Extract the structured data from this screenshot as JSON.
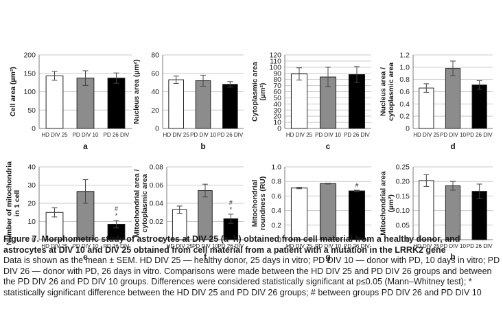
{
  "chart_data": [
    {
      "type": "bar",
      "panel_label": "a",
      "ylabel_lines": [
        "Cell area (µm²)"
      ],
      "categories": [
        "HD DIV 25",
        "PD DIV 10",
        "PD 26 DIV"
      ],
      "values": [
        143,
        137,
        137
      ],
      "errors": [
        12,
        20,
        14
      ],
      "ylim": [
        0,
        200
      ],
      "yticks": [
        0,
        50,
        100,
        150,
        200
      ],
      "colors": [
        "#ffffff",
        "#8c8c8c",
        "#000000"
      ],
      "annotations": [
        [],
        [],
        []
      ]
    },
    {
      "type": "bar",
      "panel_label": "b",
      "ylabel_lines": [
        "Nucleus area (µm²)"
      ],
      "categories": [
        "HD DIV 25",
        "PD DIV 10",
        "PD 26 DIV"
      ],
      "values": [
        53,
        52,
        48
      ],
      "errors": [
        4,
        6,
        3
      ],
      "ylim": [
        0,
        80
      ],
      "yticks": [
        0,
        20,
        40,
        60,
        80
      ],
      "colors": [
        "#ffffff",
        "#8c8c8c",
        "#000000"
      ],
      "annotations": [
        [],
        [],
        []
      ]
    },
    {
      "type": "bar",
      "panel_label": "c",
      "ylabel_lines": [
        "Cytoplasmic area",
        "(µm²)"
      ],
      "categories": [
        "HD DIV 25",
        "PD DIV 10",
        "PD 26 DIV"
      ],
      "values": [
        89,
        84,
        88
      ],
      "errors": [
        10,
        16,
        13
      ],
      "ylim": [
        0,
        120
      ],
      "yticks": [
        0,
        10,
        20,
        30,
        40,
        50,
        60,
        70,
        80,
        90,
        100,
        110,
        120
      ],
      "colors": [
        "#ffffff",
        "#8c8c8c",
        "#000000"
      ],
      "annotations": [
        [],
        [],
        []
      ]
    },
    {
      "type": "bar",
      "panel_label": "d",
      "ylabel_lines": [
        "Nucleus area /",
        "cytoplasmic area"
      ],
      "categories": [
        "HD DIV 25",
        "PD DIV 10",
        "PD 26 DIV"
      ],
      "values": [
        0.66,
        0.98,
        0.71
      ],
      "errors": [
        0.07,
        0.12,
        0.07
      ],
      "ylim": [
        0,
        1.2
      ],
      "yticks": [
        0,
        0.2,
        0.4,
        0.6,
        0.8,
        1.0,
        1.2
      ],
      "ytick_labels": [
        "0",
        "0.2",
        "0.4",
        "0.6",
        "0.8",
        "1.0",
        "1.2"
      ],
      "colors": [
        "#ffffff",
        "#8c8c8c",
        "#000000"
      ],
      "annotations": [
        [],
        [],
        []
      ]
    },
    {
      "type": "bar",
      "panel_label": "e",
      "ylabel_lines": [
        "Number of mitochondria",
        "in 1 cell"
      ],
      "categories": [
        "HD DIV 25",
        "PD DIV 10",
        "PD 26 DIV"
      ],
      "values": [
        15,
        26.5,
        8.5
      ],
      "errors": [
        2.5,
        6.5,
        2
      ],
      "ylim": [
        0,
        40
      ],
      "yticks": [
        0,
        10,
        20,
        30,
        40
      ],
      "colors": [
        "#ffffff",
        "#8c8c8c",
        "#000000"
      ],
      "annotations": [
        [],
        [],
        [
          "#",
          "*"
        ]
      ]
    },
    {
      "type": "bar",
      "panel_label": "f",
      "ylabel_lines": [
        "Mitochondrial area /",
        "cytoplasmic area"
      ],
      "categories": [
        "HD DIV 25",
        "PD DIV 10",
        "PD 26 DIV"
      ],
      "values": [
        0.033,
        0.054,
        0.023
      ],
      "errors": [
        0.004,
        0.007,
        0.005
      ],
      "ylim": [
        0,
        0.08
      ],
      "yticks": [
        0,
        0.02,
        0.04,
        0.06,
        0.08
      ],
      "ytick_labels": [
        "0",
        "0.02",
        "0.04",
        "0.06",
        "0.08"
      ],
      "colors": [
        "#ffffff",
        "#8c8c8c",
        "#000000"
      ],
      "annotations": [
        [],
        [],
        [
          "#",
          "*"
        ]
      ]
    },
    {
      "type": "bar",
      "panel_label": "g",
      "ylabel_lines": [
        "Mitochondrial",
        "roundness (RU)"
      ],
      "categories": [
        "HD DIV 25",
        "PD DIV 10",
        "PD 26 DIV"
      ],
      "values": [
        0.71,
        0.77,
        0.67
      ],
      "errors": [
        0.01,
        0.005,
        0.01
      ],
      "ylim": [
        0,
        1.0
      ],
      "yticks": [
        0,
        0.2,
        0.4,
        0.6,
        0.8,
        1.0
      ],
      "ytick_labels": [
        "0",
        "0.2",
        "0.4",
        "0.6",
        "0.8",
        "1.0"
      ],
      "colors": [
        "#ffffff",
        "#8c8c8c",
        "#000000"
      ],
      "annotations": [
        [],
        [],
        [
          "#"
        ]
      ]
    },
    {
      "type": "bar",
      "panel_label": "h",
      "ylabel_lines": [
        "Mitochondrial area",
        "(µm²)"
      ],
      "categories": [
        "HD DIV 25",
        "PD DIV 10",
        "PD 26 DIV"
      ],
      "values": [
        0.203,
        0.185,
        0.166
      ],
      "errors": [
        0.02,
        0.015,
        0.025
      ],
      "ylim": [
        0,
        0.25
      ],
      "yticks": [
        0,
        0.05,
        0.1,
        0.15,
        0.2,
        0.25
      ],
      "ytick_labels": [
        "0",
        "0.05",
        "0.10",
        "0.15",
        "0.20",
        "0.25"
      ],
      "colors": [
        "#ffffff",
        "#8c8c8c",
        "#000000"
      ],
      "annotations": [
        [],
        [],
        []
      ]
    }
  ],
  "caption": {
    "title": "Figure 7. Morphometric study of astrocytes at DIV 25 (a–h) obtained from cell material from a healthy donor, and astrocytes at DIV 10 and DIV 25 obtained from cell material from a patient with a mutation in the LRRK2 gene",
    "body": "Data is shown as the mean ± SEM. HD DIV 25 — healthy donor, 25 days in vitro; PD DIV 10 — donor with PD, 10 days in vitro; PD DIV 26 — donor with PD, 26 days in vitro. Comparisons were made between the HD DIV 25 and PD DIV 26 groups and between the PD DIV 26 and PD DIV 10 groups. Differences were considered statistically significant at p≤0.05 (Mann–Whitney test); * statistically significant difference between the HD DIV 25 and PD DIV 26 groups; # between groups PD DIV 26 and PD DIV 10"
  }
}
